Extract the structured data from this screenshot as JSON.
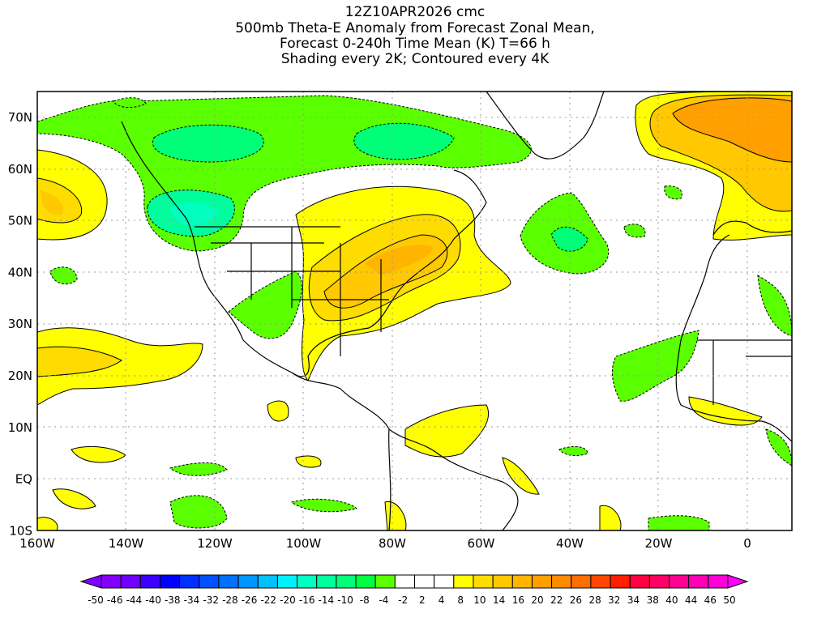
{
  "title": {
    "line1": "12Z10APR2026 cmc",
    "line2": "500mb Theta-E Anomaly from Forecast Zonal Mean,",
    "line3": "Forecast 0-240h Time Mean (K) T=66 h",
    "line4": "Shading every 2K; Contoured every 4K"
  },
  "axes": {
    "lon_labels": [
      "160W",
      "140W",
      "120W",
      "100W",
      "80W",
      "60W",
      "40W",
      "20W",
      "0"
    ],
    "lat_labels": [
      "70N",
      "60N",
      "50N",
      "40N",
      "30N",
      "20N",
      "10N",
      "EQ",
      "10S"
    ]
  },
  "colorbar": {
    "labels": [
      "-50",
      "-46",
      "-44",
      "-40",
      "-38",
      "-34",
      "-32",
      "-28",
      "-26",
      "-22",
      "-20",
      "-16",
      "-14",
      "-10",
      "-8",
      "-4",
      "-2",
      "2",
      "4",
      "8",
      "10",
      "14",
      "16",
      "20",
      "22",
      "26",
      "28",
      "32",
      "34",
      "38",
      "40",
      "44",
      "46",
      "50"
    ],
    "colors": [
      "#8200ff",
      "#6e00ff",
      "#3c00ff",
      "#0000ff",
      "#0030ff",
      "#0050ff",
      "#0070ff",
      "#0096ff",
      "#00c0ff",
      "#00f0ff",
      "#00ffc0",
      "#00ff9c",
      "#00ff78",
      "#00ff40",
      "#5aff00",
      "#ffffff",
      "#ffffff",
      "#ffffff",
      "#ffff00",
      "#ffdc00",
      "#ffc800",
      "#ffb400",
      "#ffa000",
      "#ff8c00",
      "#ff6e00",
      "#ff4600",
      "#ff1e00",
      "#ff0040",
      "#ff0064",
      "#ff0090",
      "#ff00b4",
      "#ff00d8"
    ],
    "low_color": "#8000ff",
    "high_color": "#ff00ff"
  }
}
